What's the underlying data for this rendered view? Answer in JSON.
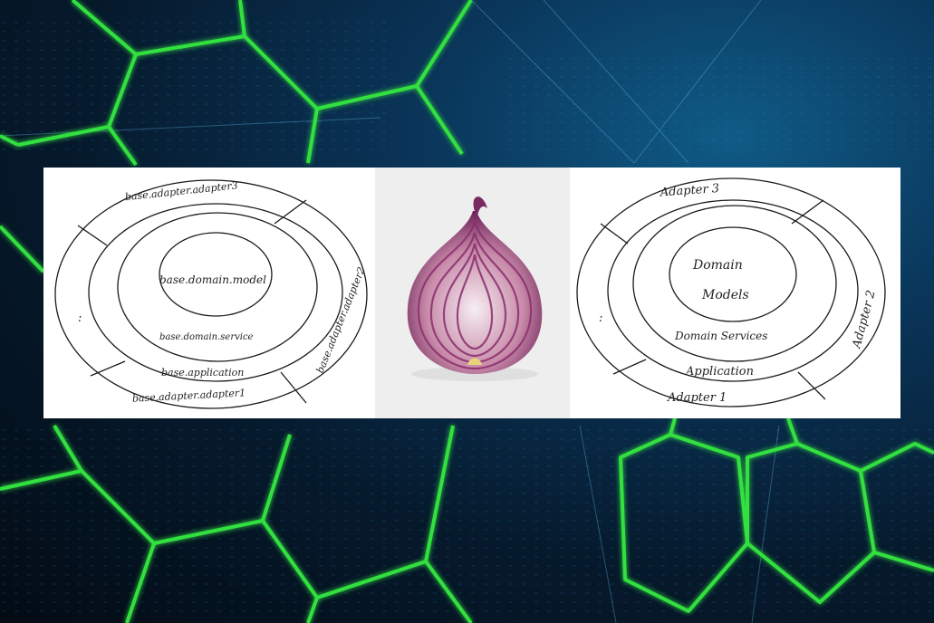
{
  "left_diagram": {
    "outer_top": "base.adapter.adapter3",
    "outer_right": "base.adapter.adapter2",
    "outer_bottom": "base.adapter.adapter1",
    "outer_left": ":",
    "middle": "base.application",
    "inner": "base.domain.service",
    "core": "base.domain.model"
  },
  "right_diagram": {
    "outer_top": "Adapter 3",
    "outer_right": "Adapter 2",
    "outer_bottom": "Adapter 1",
    "outer_left": ":",
    "middle": "Application",
    "inner": "Domain Services",
    "core_line1": "Domain",
    "core_line2": "Models"
  },
  "icons": {
    "center_image": "onion-icon",
    "background": "hexagon-network-background"
  },
  "colors": {
    "hex_green": "#33e03f",
    "bg_dark": "#04101c",
    "bg_blue": "#0f5b86",
    "onion_purple": "#7a2a62"
  }
}
